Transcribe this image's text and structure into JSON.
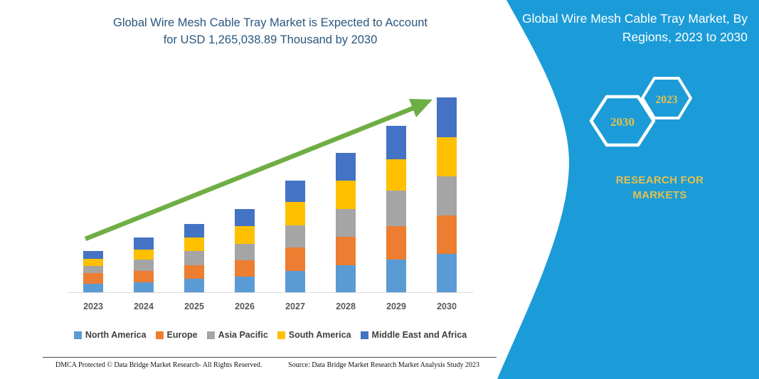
{
  "header": {
    "title_line1": "Global Wire Mesh Cable Tray Market is Expected to Account",
    "title_line2": "for USD 1,265,038.89 Thousand by 2030",
    "color": "#2A567E"
  },
  "panel": {
    "bg_color": "#1B9CD8",
    "accent_color": "#E3C14F",
    "title_line1": "Global Wire Mesh Cable Tray Market, By",
    "title_line2": "Regions, 2023 to 2030",
    "hexagons": [
      {
        "label": "2030"
      },
      {
        "label": "2023"
      }
    ],
    "brand": "RESEARCH FOR MARKETS"
  },
  "chart_data": {
    "type": "bar",
    "stacked": true,
    "title": "Global Wire Mesh Cable Tray Market is Expected to Account for USD 1,265,038.89 Thousand by 2030",
    "units": "USD Thousand",
    "categories": [
      "2023",
      "2024",
      "2025",
      "2026",
      "2027",
      "2028",
      "2029",
      "2030"
    ],
    "series": [
      {
        "name": "North America",
        "color": "#5B9BD5",
        "values": [
          54000,
          66000,
          86200,
          100100,
          139700,
          173900,
          212200,
          250400
        ]
      },
      {
        "name": "Europe",
        "color": "#ED7D31",
        "values": [
          69200,
          73800,
          87600,
          107500,
          149000,
          187700,
          218100,
          249000
        ]
      },
      {
        "name": "Asia Pacific",
        "color": "#A5A5A5",
        "values": [
          46100,
          72400,
          92200,
          104700,
          146200,
          176600,
          227400,
          253700
        ]
      },
      {
        "name": "South America",
        "color": "#FFC000",
        "values": [
          46100,
          66000,
          89000,
          115300,
          149000,
          184500,
          202900,
          253700
        ]
      },
      {
        "name": "Middle East and Africa",
        "color": "#4472C4",
        "values": [
          54000,
          75200,
          87600,
          110700,
          138400,
          181200,
          220000,
          258238.89
        ]
      }
    ],
    "totals": [
      269400,
      353400,
      442600,
      538300,
      722300,
      903900,
      1080600,
      1265038.89
    ],
    "ylim": [
      0,
      1291000
    ],
    "grid": false,
    "y_axis_visible": false,
    "legend_position": "bottom",
    "trend_arrow": {
      "color": "#6FAE44",
      "from_category": "2023",
      "to_category": "2030"
    }
  },
  "footer": {
    "left": "DMCA Protected © Data Bridge Market Research-  All Rights Reserved.",
    "right": "Source: Data Bridge Market Research  Market Analysis Study 2023"
  }
}
